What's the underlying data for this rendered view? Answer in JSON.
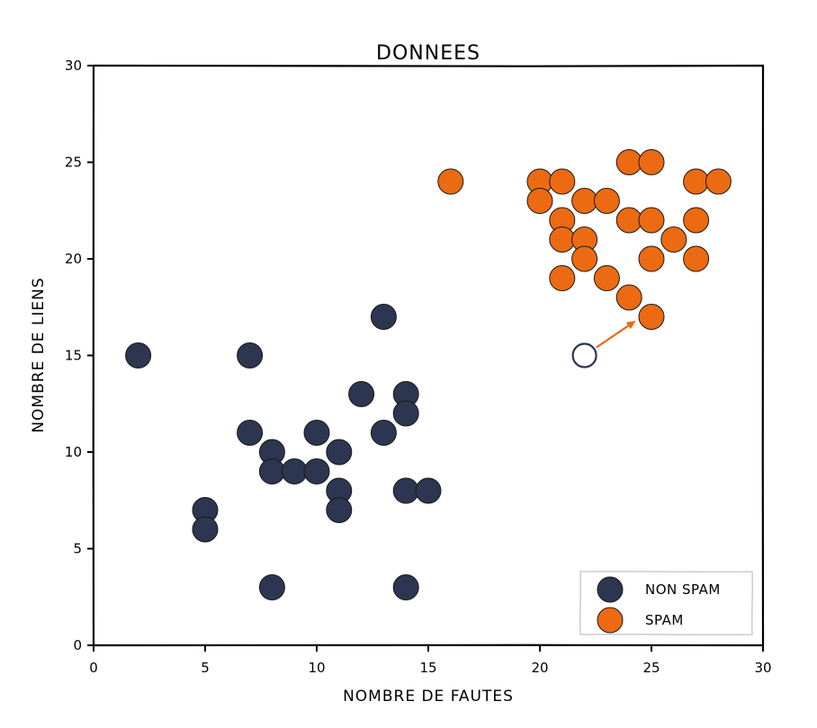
{
  "chart_data": {
    "type": "scatter",
    "title": "DONNEES",
    "xlabel": "NOMBRE DE FAUTES",
    "ylabel": "NOMBRE DE LIENS",
    "xlim": [
      0,
      30
    ],
    "ylim": [
      0,
      30
    ],
    "xticks": [
      "0",
      "5",
      "10",
      "15",
      "20",
      "25",
      "30"
    ],
    "yticks": [
      "0",
      "5",
      "10",
      "15",
      "20",
      "25",
      "30"
    ],
    "grid": false,
    "legend_position": "bottom-right",
    "series": [
      {
        "name": "NON SPAM",
        "color": "#2d3650",
        "points": [
          [
            2,
            15
          ],
          [
            7,
            15
          ],
          [
            13,
            17
          ],
          [
            12,
            13
          ],
          [
            14,
            13
          ],
          [
            14,
            12
          ],
          [
            7,
            11
          ],
          [
            10,
            11
          ],
          [
            13,
            11
          ],
          [
            8,
            10
          ],
          [
            11,
            10
          ],
          [
            8,
            9
          ],
          [
            9,
            9
          ],
          [
            10,
            9
          ],
          [
            11,
            8
          ],
          [
            14,
            8
          ],
          [
            15,
            8
          ],
          [
            11,
            7
          ],
          [
            5,
            7
          ],
          [
            5,
            6
          ],
          [
            8,
            3
          ],
          [
            14,
            3
          ]
        ]
      },
      {
        "name": "SPAM",
        "color": "#ec6a12",
        "points": [
          [
            16,
            24
          ],
          [
            20,
            24
          ],
          [
            21,
            24
          ],
          [
            24,
            25
          ],
          [
            25,
            25
          ],
          [
            27,
            24
          ],
          [
            28,
            24
          ],
          [
            20,
            23
          ],
          [
            22,
            23
          ],
          [
            23,
            23
          ],
          [
            21,
            22
          ],
          [
            24,
            22
          ],
          [
            25,
            22
          ],
          [
            27,
            22
          ],
          [
            21,
            21
          ],
          [
            22,
            21
          ],
          [
            26,
            21
          ],
          [
            22,
            20
          ],
          [
            25,
            20
          ],
          [
            27,
            20
          ],
          [
            21,
            19
          ],
          [
            23,
            19
          ],
          [
            24,
            18
          ],
          [
            25,
            17
          ]
        ]
      }
    ],
    "new_point": {
      "x": 22,
      "y": 15,
      "color": "#2d3650"
    },
    "arrow": {
      "from": [
        22,
        15
      ],
      "to": [
        24.3,
        16.8
      ],
      "color": "#ec6a12"
    }
  }
}
